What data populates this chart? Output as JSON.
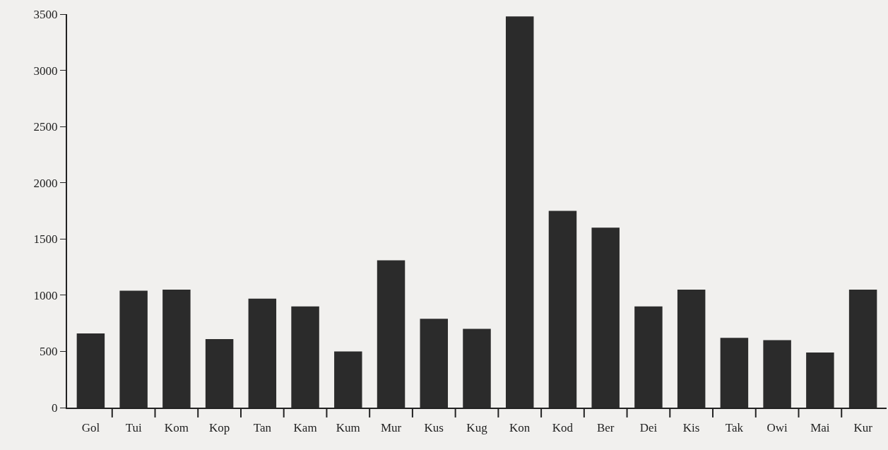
{
  "chart_data": {
    "type": "bar",
    "categories": [
      "Gol",
      "Tui",
      "Kom",
      "Kop",
      "Tan",
      "Kam",
      "Kum",
      "Mur",
      "Kus",
      "Kug",
      "Kon",
      "Kod",
      "Ber",
      "Dei",
      "Kis",
      "Tak",
      "Owi",
      "Mai",
      "Kur"
    ],
    "values": [
      660,
      1040,
      1050,
      610,
      970,
      900,
      500,
      1310,
      790,
      700,
      3480,
      1750,
      1600,
      900,
      1050,
      620,
      600,
      490,
      1050
    ],
    "color": "#2b2b2b",
    "ylim": [
      0,
      3500
    ],
    "yticks": [
      0,
      500,
      1000,
      1500,
      2000,
      2500,
      3000,
      3500
    ],
    "grid": false,
    "legend": false
  }
}
